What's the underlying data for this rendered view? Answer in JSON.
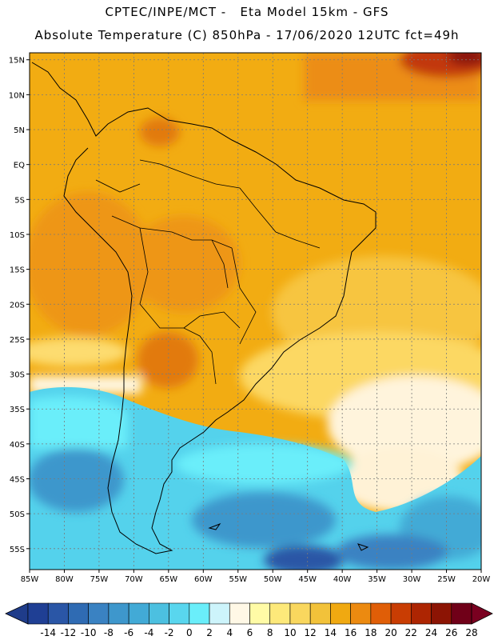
{
  "header": {
    "title_line1": "CPTEC/INPE/MCT -   Eta Model 15km - GFS",
    "title_line2": "Absolute Temperature (C) 850hPa - 17/06/2020 12UTC fct=49h"
  },
  "map": {
    "projection": "lat-lon",
    "lon_range": [
      -85,
      -20
    ],
    "lat_range": [
      -58,
      16
    ],
    "lat_labels": [
      "15N",
      "10N",
      "5N",
      "EQ",
      "5S",
      "10S",
      "15S",
      "20S",
      "25S",
      "30S",
      "35S",
      "40S",
      "45S",
      "50S",
      "55S"
    ],
    "lon_labels": [
      "85W",
      "80W",
      "75W",
      "70W",
      "65W",
      "60W",
      "55W",
      "50W",
      "45W",
      "40W",
      "35W",
      "30W",
      "25W",
      "20W"
    ],
    "grid": "dashed"
  },
  "colorbar": {
    "labels": [
      "-14",
      "-12",
      "-10",
      "-8",
      "-6",
      "-4",
      "-2",
      "0",
      "2",
      "4",
      "6",
      "8",
      "10",
      "12",
      "14",
      "16",
      "18",
      "20",
      "22",
      "24",
      "26",
      "28"
    ],
    "colors": [
      "#1f3f94",
      "#2a56a6",
      "#2f6bb3",
      "#3a82c2",
      "#3e97cc",
      "#42aad6",
      "#4cc0e0",
      "#59d6ee",
      "#6aeefa",
      "#cdf4fb",
      "#fff8e6",
      "#fffba6",
      "#fde97a",
      "#f9d75e",
      "#f2c23a",
      "#f0a911",
      "#ec8a10",
      "#e05e07",
      "#c93d03",
      "#ad2502",
      "#8c1404",
      "#700018"
    ],
    "under_color": "#1f3c8a",
    "over_color": "#7a0020"
  }
}
